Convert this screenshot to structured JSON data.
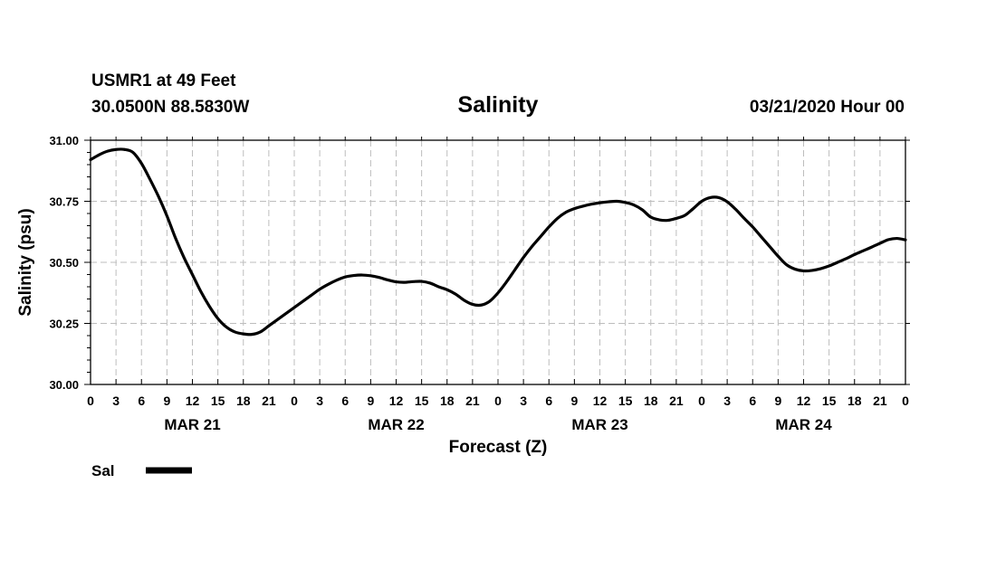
{
  "header": {
    "station": "USMR1 at 49 Feet",
    "coords": "30.0500N 88.5830W",
    "title": "Salinity",
    "datetime": "03/21/2020 Hour 00"
  },
  "legend": {
    "label": "Sal"
  },
  "chart_data": {
    "type": "line",
    "title": "Salinity",
    "xlabel": "Forecast (Z)",
    "ylabel": "Salinity (psu)",
    "xlim": [
      0,
      96
    ],
    "ylim": [
      30.0,
      31.0
    ],
    "grid": true,
    "yticks": [
      {
        "v": 30.0,
        "label": "30.00"
      },
      {
        "v": 30.25,
        "label": "30.25"
      },
      {
        "v": 30.5,
        "label": "30.50"
      },
      {
        "v": 30.75,
        "label": "30.75"
      },
      {
        "v": 31.0,
        "label": "31.00"
      }
    ],
    "xticks": [
      {
        "h": 0,
        "label": "0"
      },
      {
        "h": 3,
        "label": "3"
      },
      {
        "h": 6,
        "label": "6"
      },
      {
        "h": 9,
        "label": "9"
      },
      {
        "h": 12,
        "label": "12"
      },
      {
        "h": 15,
        "label": "15"
      },
      {
        "h": 18,
        "label": "18"
      },
      {
        "h": 21,
        "label": "21"
      },
      {
        "h": 24,
        "label": "0"
      },
      {
        "h": 27,
        "label": "3"
      },
      {
        "h": 30,
        "label": "6"
      },
      {
        "h": 33,
        "label": "9"
      },
      {
        "h": 36,
        "label": "12"
      },
      {
        "h": 39,
        "label": "15"
      },
      {
        "h": 42,
        "label": "18"
      },
      {
        "h": 45,
        "label": "21"
      },
      {
        "h": 48,
        "label": "0"
      },
      {
        "h": 51,
        "label": "3"
      },
      {
        "h": 54,
        "label": "6"
      },
      {
        "h": 57,
        "label": "9"
      },
      {
        "h": 60,
        "label": "12"
      },
      {
        "h": 63,
        "label": "15"
      },
      {
        "h": 66,
        "label": "18"
      },
      {
        "h": 69,
        "label": "21"
      },
      {
        "h": 72,
        "label": "0"
      },
      {
        "h": 75,
        "label": "3"
      },
      {
        "h": 78,
        "label": "6"
      },
      {
        "h": 81,
        "label": "9"
      },
      {
        "h": 84,
        "label": "12"
      },
      {
        "h": 87,
        "label": "15"
      },
      {
        "h": 90,
        "label": "18"
      },
      {
        "h": 93,
        "label": "21"
      },
      {
        "h": 96,
        "label": "0"
      }
    ],
    "day_labels": [
      {
        "h": 12,
        "label": "MAR 21"
      },
      {
        "h": 36,
        "label": "MAR 22"
      },
      {
        "h": 60,
        "label": "MAR 23"
      },
      {
        "h": 84,
        "label": "MAR 24"
      }
    ],
    "series": [
      {
        "name": "Sal",
        "color": "#000000",
        "x": [
          0,
          1,
          2,
          3,
          4,
          5,
          6,
          7,
          8,
          9,
          10,
          11,
          12,
          13,
          14,
          15,
          16,
          17,
          18,
          19,
          20,
          21,
          22,
          23,
          24,
          25,
          26,
          27,
          28,
          29,
          30,
          31,
          32,
          33,
          34,
          35,
          36,
          37,
          38,
          39,
          40,
          41,
          42,
          43,
          44,
          45,
          46,
          47,
          48,
          49,
          50,
          51,
          52,
          53,
          54,
          55,
          56,
          57,
          58,
          59,
          60,
          61,
          62,
          63,
          64,
          65,
          66,
          67,
          68,
          69,
          70,
          71,
          72,
          73,
          74,
          75,
          76,
          77,
          78,
          79,
          80,
          81,
          82,
          83,
          84,
          85,
          86,
          87,
          88,
          89,
          90,
          91,
          92,
          93,
          94,
          95,
          96
        ],
        "values": [
          30.92,
          30.94,
          30.955,
          30.962,
          30.962,
          30.95,
          30.905,
          30.84,
          30.77,
          30.69,
          30.6,
          30.52,
          30.45,
          30.38,
          30.32,
          30.27,
          30.235,
          30.215,
          30.207,
          30.205,
          30.215,
          30.24,
          30.265,
          30.29,
          30.315,
          30.34,
          30.365,
          30.39,
          30.41,
          30.427,
          30.44,
          30.446,
          30.448,
          30.445,
          30.438,
          30.428,
          30.42,
          30.418,
          30.421,
          30.422,
          30.415,
          30.4,
          30.388,
          30.37,
          30.345,
          30.328,
          30.325,
          30.34,
          30.375,
          30.42,
          30.47,
          30.52,
          30.565,
          30.605,
          30.645,
          30.68,
          30.705,
          30.72,
          30.73,
          30.738,
          30.744,
          30.748,
          30.75,
          30.745,
          30.735,
          30.715,
          30.685,
          30.674,
          30.672,
          30.68,
          30.692,
          30.72,
          30.75,
          30.765,
          30.765,
          30.748,
          30.717,
          30.68,
          30.645,
          30.605,
          30.565,
          30.525,
          30.49,
          30.472,
          30.465,
          30.467,
          30.474,
          30.485,
          30.5,
          30.515,
          30.532,
          30.547,
          30.562,
          30.578,
          30.593,
          30.598,
          30.592
        ]
      }
    ]
  }
}
